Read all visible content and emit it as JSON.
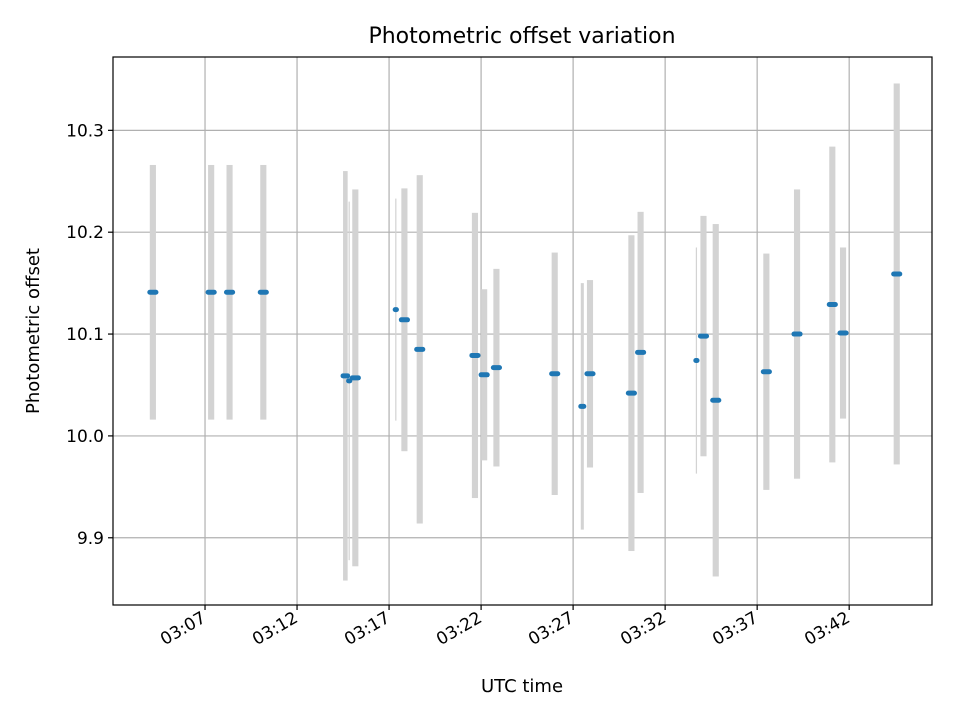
{
  "chart_data": {
    "type": "scatter",
    "title": "Photometric offset variation",
    "xlabel": "UTC time",
    "ylabel": "Photometric offset",
    "x_ticks": [
      "03:07",
      "03:12",
      "03:17",
      "03:22",
      "03:27",
      "03:32",
      "03:37",
      "03:42"
    ],
    "y_ticks": [
      "9.9",
      "10.0",
      "10.1",
      "10.2",
      "10.3"
    ],
    "y_tick_values": [
      9.9,
      10.0,
      10.1,
      10.2,
      10.3
    ],
    "xlim": [
      "03:02:00",
      "03:46:30"
    ],
    "ylim": [
      9.834,
      10.372
    ],
    "grid": true,
    "colors": {
      "marker": "#1f77b4",
      "error_bar": "#d3d3d3",
      "grid": "#b0b0b0"
    },
    "series": [
      {
        "points": [
          {
            "t0": "03:04:00",
            "t1": "03:04:20",
            "y": 10.141,
            "err": 0.125
          },
          {
            "t0": "03:07:10",
            "t1": "03:07:30",
            "y": 10.141,
            "err": 0.125
          },
          {
            "t0": "03:08:10",
            "t1": "03:08:30",
            "y": 10.141,
            "err": 0.125
          },
          {
            "t0": "03:10:00",
            "t1": "03:10:20",
            "y": 10.141,
            "err": 0.125
          },
          {
            "t0": "03:14:30",
            "t1": "03:14:45",
            "y": 10.059,
            "err": 0.201
          },
          {
            "t0": "03:14:48",
            "t1": "03:14:52",
            "y": 10.054,
            "err": 0.176
          },
          {
            "t0": "03:15:00",
            "t1": "03:15:20",
            "y": 10.057,
            "err": 0.185
          },
          {
            "t0": "03:17:20",
            "t1": "03:17:24",
            "y": 10.124,
            "err": 0.109
          },
          {
            "t0": "03:17:40",
            "t1": "03:18:00",
            "y": 10.114,
            "err": 0.129
          },
          {
            "t0": "03:18:30",
            "t1": "03:18:50",
            "y": 10.085,
            "err": 0.171
          },
          {
            "t0": "03:21:30",
            "t1": "03:21:50",
            "y": 10.079,
            "err": 0.14
          },
          {
            "t0": "03:22:00",
            "t1": "03:22:20",
            "y": 10.06,
            "err": 0.084
          },
          {
            "t0": "03:22:40",
            "t1": "03:23:00",
            "y": 10.067,
            "err": 0.097
          },
          {
            "t0": "03:25:50",
            "t1": "03:26:10",
            "y": 10.061,
            "err": 0.119
          },
          {
            "t0": "03:27:25",
            "t1": "03:27:35",
            "y": 10.029,
            "err": 0.121
          },
          {
            "t0": "03:27:45",
            "t1": "03:28:05",
            "y": 10.061,
            "err": 0.092
          },
          {
            "t0": "03:30:00",
            "t1": "03:30:20",
            "y": 10.042,
            "err": 0.155
          },
          {
            "t0": "03:30:30",
            "t1": "03:30:50",
            "y": 10.082,
            "err": 0.138
          },
          {
            "t0": "03:33:40",
            "t1": "03:33:44",
            "y": 10.074,
            "err": 0.111
          },
          {
            "t0": "03:33:55",
            "t1": "03:34:15",
            "y": 10.098,
            "err": 0.118
          },
          {
            "t0": "03:34:35",
            "t1": "03:34:55",
            "y": 10.035,
            "err": 0.173
          },
          {
            "t0": "03:37:20",
            "t1": "03:37:40",
            "y": 10.063,
            "err": 0.116
          },
          {
            "t0": "03:39:00",
            "t1": "03:39:20",
            "y": 10.1,
            "err": 0.142
          },
          {
            "t0": "03:40:55",
            "t1": "03:41:15",
            "y": 10.129,
            "err": 0.155
          },
          {
            "t0": "03:41:30",
            "t1": "03:41:50",
            "y": 10.101,
            "err": 0.084
          },
          {
            "t0": "03:44:25",
            "t1": "03:44:45",
            "y": 10.159,
            "err": 0.187
          }
        ]
      }
    ]
  }
}
